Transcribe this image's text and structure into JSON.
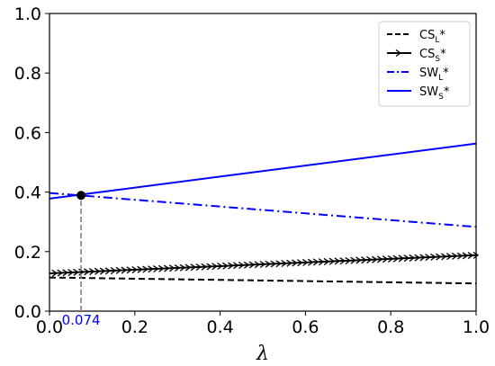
{
  "chart_data": {
    "type": "line",
    "xlabel": "λ",
    "ylabel": "",
    "xlim": [
      0.0,
      1.0
    ],
    "ylim": [
      0.0,
      1.0
    ],
    "xticks": [
      "0.0",
      "0.2",
      "0.4",
      "0.6",
      "0.8",
      "1.0"
    ],
    "yticks": [
      "0.0",
      "0.2",
      "0.4",
      "0.6",
      "0.8",
      "1.0"
    ],
    "grid": false,
    "legend_position": "top-right",
    "series": [
      {
        "name": "CS",
        "subscript": "L",
        "suffix": "*",
        "style": "dashed",
        "color": "#000000",
        "x": [
          0.0,
          1.0
        ],
        "y": [
          0.113,
          0.093
        ]
      },
      {
        "name": "CS",
        "subscript": "S",
        "suffix": "*",
        "style": "solid-arrows",
        "color": "#000000",
        "x": [
          0.0,
          1.0
        ],
        "y": [
          0.127,
          0.188
        ]
      },
      {
        "name": "SW",
        "subscript": "L",
        "suffix": "*",
        "style": "dashdot",
        "color": "#0000ff",
        "x": [
          0.0,
          1.0
        ],
        "y": [
          0.397,
          0.283
        ]
      },
      {
        "name": "SW",
        "subscript": "S",
        "suffix": "*",
        "style": "solid",
        "color": "#0000ff",
        "x": [
          0.0,
          1.0
        ],
        "y": [
          0.378,
          0.563
        ]
      }
    ],
    "annotations": [
      {
        "type": "point",
        "x": 0.074,
        "y": 0.389,
        "color": "#000000"
      },
      {
        "type": "vline",
        "x": 0.074,
        "y_from": 0.0,
        "y_to": 0.389,
        "style": "dashed",
        "color": "#808080"
      },
      {
        "type": "label",
        "text": "0.074",
        "x": 0.074,
        "color": "#0000ff"
      }
    ]
  }
}
